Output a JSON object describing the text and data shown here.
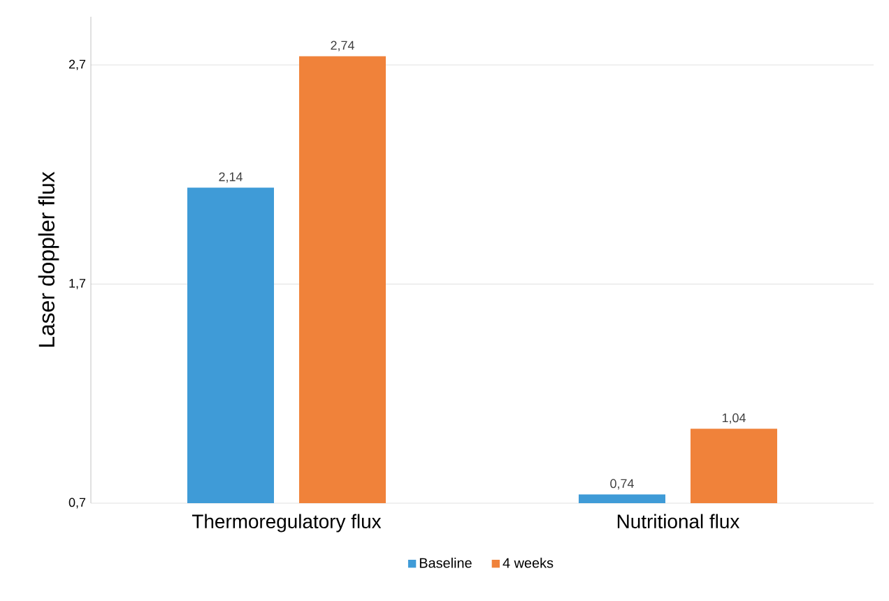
{
  "chart_data": {
    "type": "bar",
    "ylabel": "Laser doppler flux",
    "categories": [
      "Thermoregulatory flux",
      "Nutritional flux"
    ],
    "series": [
      {
        "name": "Baseline",
        "color": "#3f9bd7",
        "values": [
          2.14,
          0.74
        ],
        "value_labels": [
          "2,14",
          "0,74"
        ]
      },
      {
        "name": "4 weeks",
        "color": "#f0823a",
        "values": [
          2.74,
          1.04
        ],
        "value_labels": [
          "2,74",
          "1,04"
        ]
      }
    ],
    "ylim": [
      0.7,
      2.92
    ],
    "yticks": [
      {
        "value": 0.7,
        "label": "0,7"
      },
      {
        "value": 1.7,
        "label": "1,7"
      },
      {
        "value": 2.7,
        "label": "2,7"
      }
    ],
    "grid": "y",
    "legend": "bottom"
  }
}
